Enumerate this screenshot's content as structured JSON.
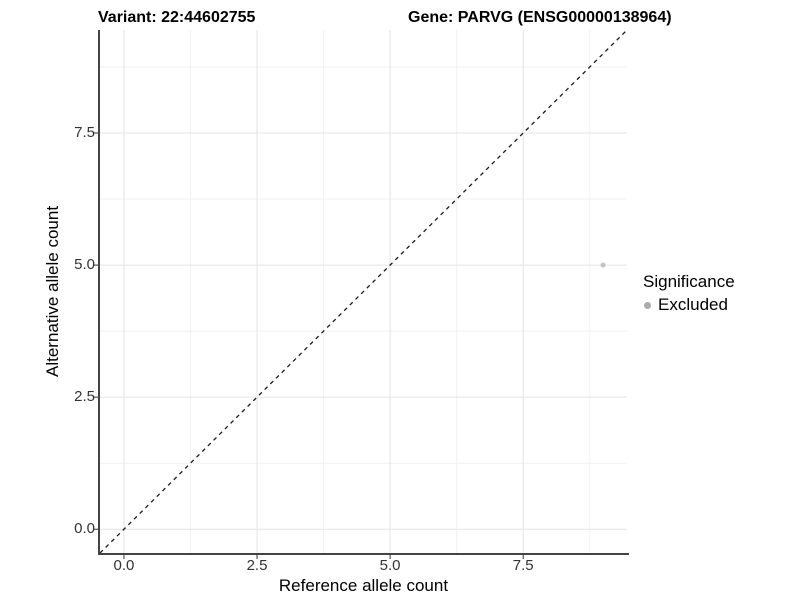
{
  "titles": {
    "variant": "Variant: 22:44602755",
    "gene": "Gene: PARVG (ENSG00000138964)"
  },
  "chart_data": {
    "type": "scatter",
    "xlabel": "Reference allele count",
    "ylabel": "Alternative allele count",
    "xlim": [
      0,
      9
    ],
    "ylim": [
      0,
      9
    ],
    "axis_expansion": 0.45,
    "x_major_ticks": [
      0.0,
      2.5,
      5.0,
      7.5
    ],
    "y_major_ticks": [
      0.0,
      2.5,
      5.0,
      7.5
    ],
    "x_tick_labels": [
      "0.0",
      "2.5",
      "5.0",
      "7.5"
    ],
    "y_tick_labels": [
      "0.0",
      "2.5",
      "5.0",
      "7.5"
    ],
    "x_minor_ticks": [
      1.25,
      3.75,
      6.25,
      8.75
    ],
    "y_minor_ticks": [
      1.25,
      3.75,
      6.25,
      8.75
    ],
    "grid": true,
    "reference_line": {
      "type": "identity",
      "style": "dashed",
      "color": "#1a1a1a"
    },
    "series": [
      {
        "name": "Excluded",
        "color": "#c2c2c2",
        "points": [
          {
            "x": 9,
            "y": 5
          }
        ]
      }
    ],
    "legend": {
      "title": "Significance",
      "position": "right",
      "items": [
        {
          "label": "Excluded",
          "color": "#ababab"
        }
      ]
    }
  },
  "style_colors": {
    "grid_major": "#e4e4e4",
    "grid_minor": "#f1f1f1",
    "axis_line": "#444444",
    "tick_mark": "#333333",
    "tick_text": "#333333"
  }
}
